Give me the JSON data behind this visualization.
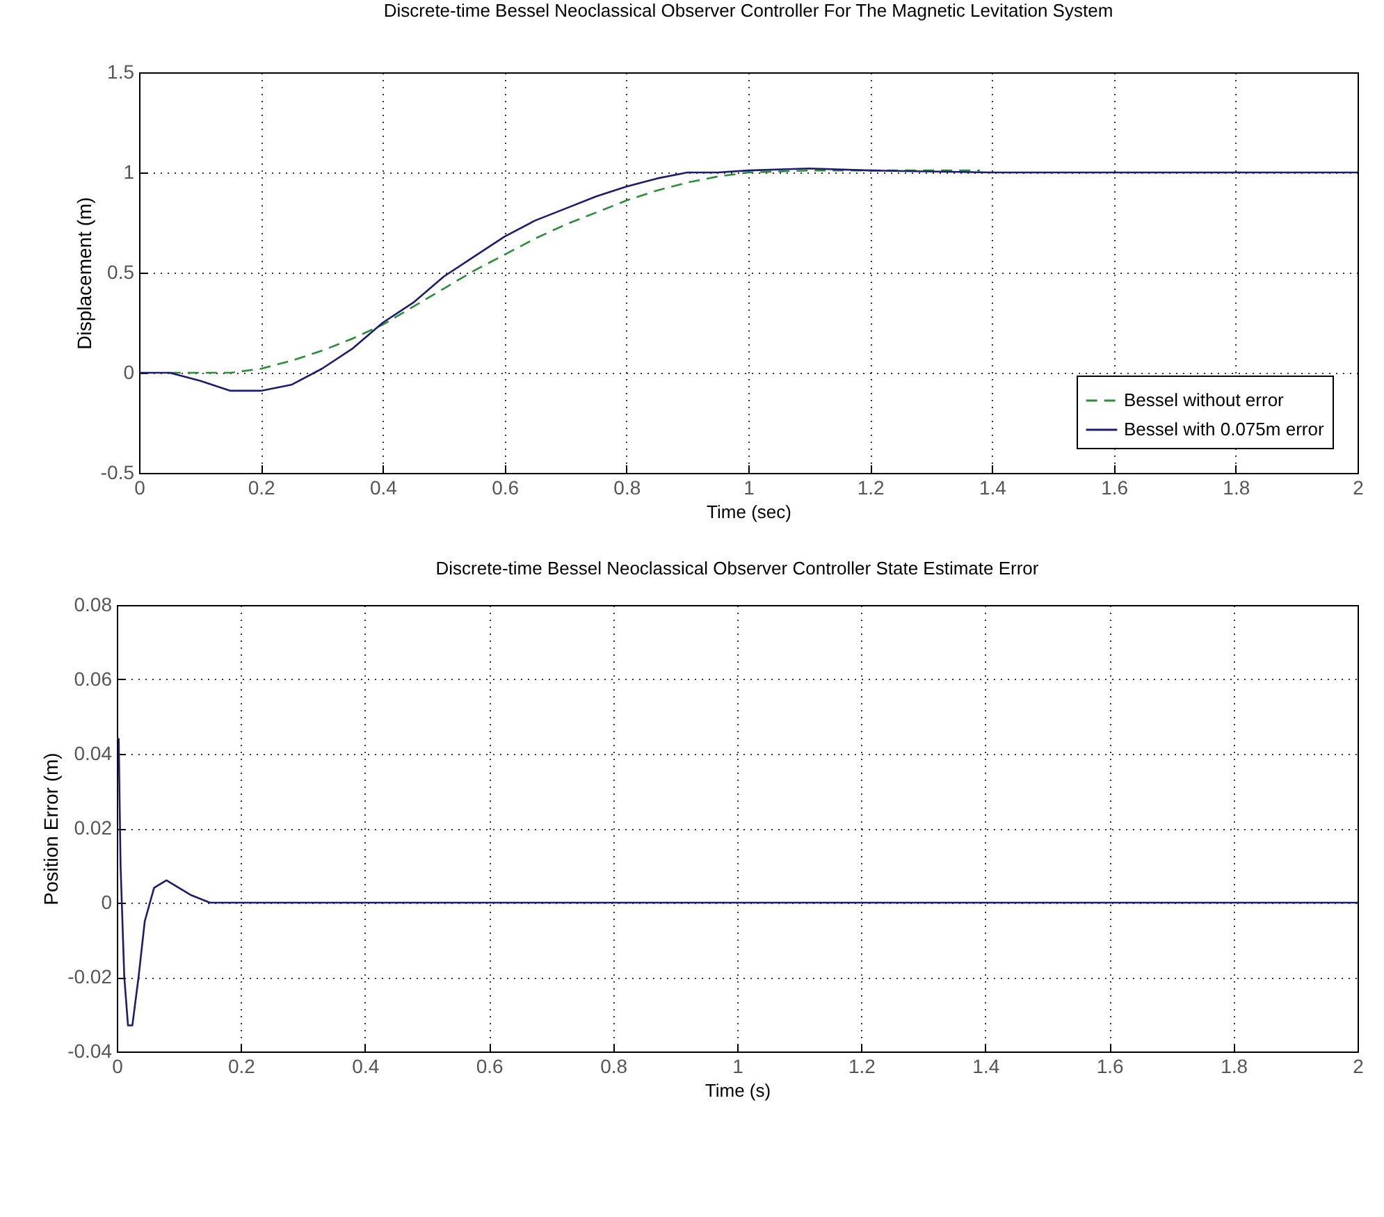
{
  "chart_data": [
    {
      "type": "line",
      "title": "Discrete-time Bessel Neoclassical Observer Controller For The Magnetic Levitation System",
      "xlabel": "Time (sec)",
      "ylabel": "Displacement (m)",
      "xlim": [
        0,
        2
      ],
      "xticks": [
        0,
        0.2,
        0.4,
        0.6,
        0.8,
        1,
        1.2,
        1.4,
        1.6,
        1.8,
        2
      ],
      "ylim": [
        -0.5,
        1.5
      ],
      "yticks": [
        -0.5,
        0,
        0.5,
        1,
        1.5
      ],
      "grid": true,
      "legend": "bottom right",
      "series": [
        {
          "name": "Bessel without error",
          "color": "#2e8b3a",
          "line_style": "dashed",
          "x": [
            0.05,
            0.15,
            0.2,
            0.25,
            0.3,
            0.35,
            0.4,
            0.45,
            0.5,
            0.55,
            0.6,
            0.65,
            0.7,
            0.75,
            0.8,
            0.85,
            0.9,
            0.95,
            1.0,
            1.1,
            1.2,
            1.38
          ],
          "values": [
            0,
            0,
            0.02,
            0.06,
            0.11,
            0.17,
            0.24,
            0.33,
            0.42,
            0.51,
            0.59,
            0.67,
            0.74,
            0.8,
            0.86,
            0.91,
            0.95,
            0.98,
            1.0,
            1.01,
            1.01,
            1.01
          ]
        },
        {
          "name": "Bessel with 0.075m error",
          "color": "#1c1c6e",
          "line_style": "solid",
          "x": [
            0,
            0.05,
            0.1,
            0.15,
            0.2,
            0.25,
            0.3,
            0.35,
            0.4,
            0.45,
            0.5,
            0.55,
            0.6,
            0.65,
            0.7,
            0.75,
            0.8,
            0.85,
            0.9,
            0.95,
            1.0,
            1.1,
            1.2,
            1.4,
            2
          ],
          "values": [
            0,
            0,
            -0.04,
            -0.09,
            -0.09,
            -0.06,
            0.02,
            0.12,
            0.25,
            0.35,
            0.48,
            0.58,
            0.68,
            0.76,
            0.82,
            0.88,
            0.93,
            0.97,
            1.0,
            1.0,
            1.01,
            1.02,
            1.01,
            1.0,
            1.0
          ]
        }
      ]
    },
    {
      "type": "line",
      "title": "Discrete-time Bessel Neoclassical Observer Controller State Estimate Error",
      "xlabel": "Time (s)",
      "ylabel": "Position Error (m)",
      "xlim": [
        0,
        2
      ],
      "xticks": [
        0,
        0.2,
        0.4,
        0.6,
        0.8,
        1,
        1.2,
        1.4,
        1.6,
        1.8,
        2
      ],
      "ylim": [
        -0.04,
        0.08
      ],
      "yticks": [
        -0.04,
        -0.02,
        0,
        0.02,
        0.04,
        0.06,
        0.08
      ],
      "grid": true,
      "series": [
        {
          "color": "#1c1c6e",
          "x": [
            0,
            0.003,
            0.006,
            0.012,
            0.018,
            0.025,
            0.035,
            0.045,
            0.06,
            0.08,
            0.1,
            0.12,
            0.15,
            2
          ],
          "values": [
            0.044,
            0.044,
            0.01,
            -0.02,
            -0.033,
            -0.033,
            -0.02,
            -0.005,
            0.004,
            0.006,
            0.004,
            0.002,
            0,
            0
          ]
        }
      ]
    }
  ]
}
